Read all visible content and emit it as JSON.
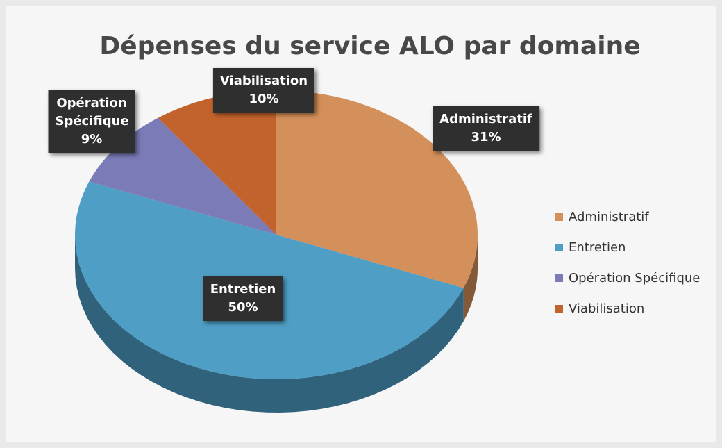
{
  "chart_data": {
    "type": "pie",
    "title": "Dépenses du service ALO par domaine",
    "categories": [
      "Administratif",
      "Entretien",
      "Opération Spécifique",
      "Viabilisation"
    ],
    "values": [
      31,
      50,
      9,
      10
    ],
    "value_labels": [
      "31%",
      "50%",
      "9%",
      "10%"
    ],
    "colors": [
      "#d4905a",
      "#4f9ec6",
      "#7b7bb8",
      "#c2622c"
    ],
    "legend": "right"
  }
}
